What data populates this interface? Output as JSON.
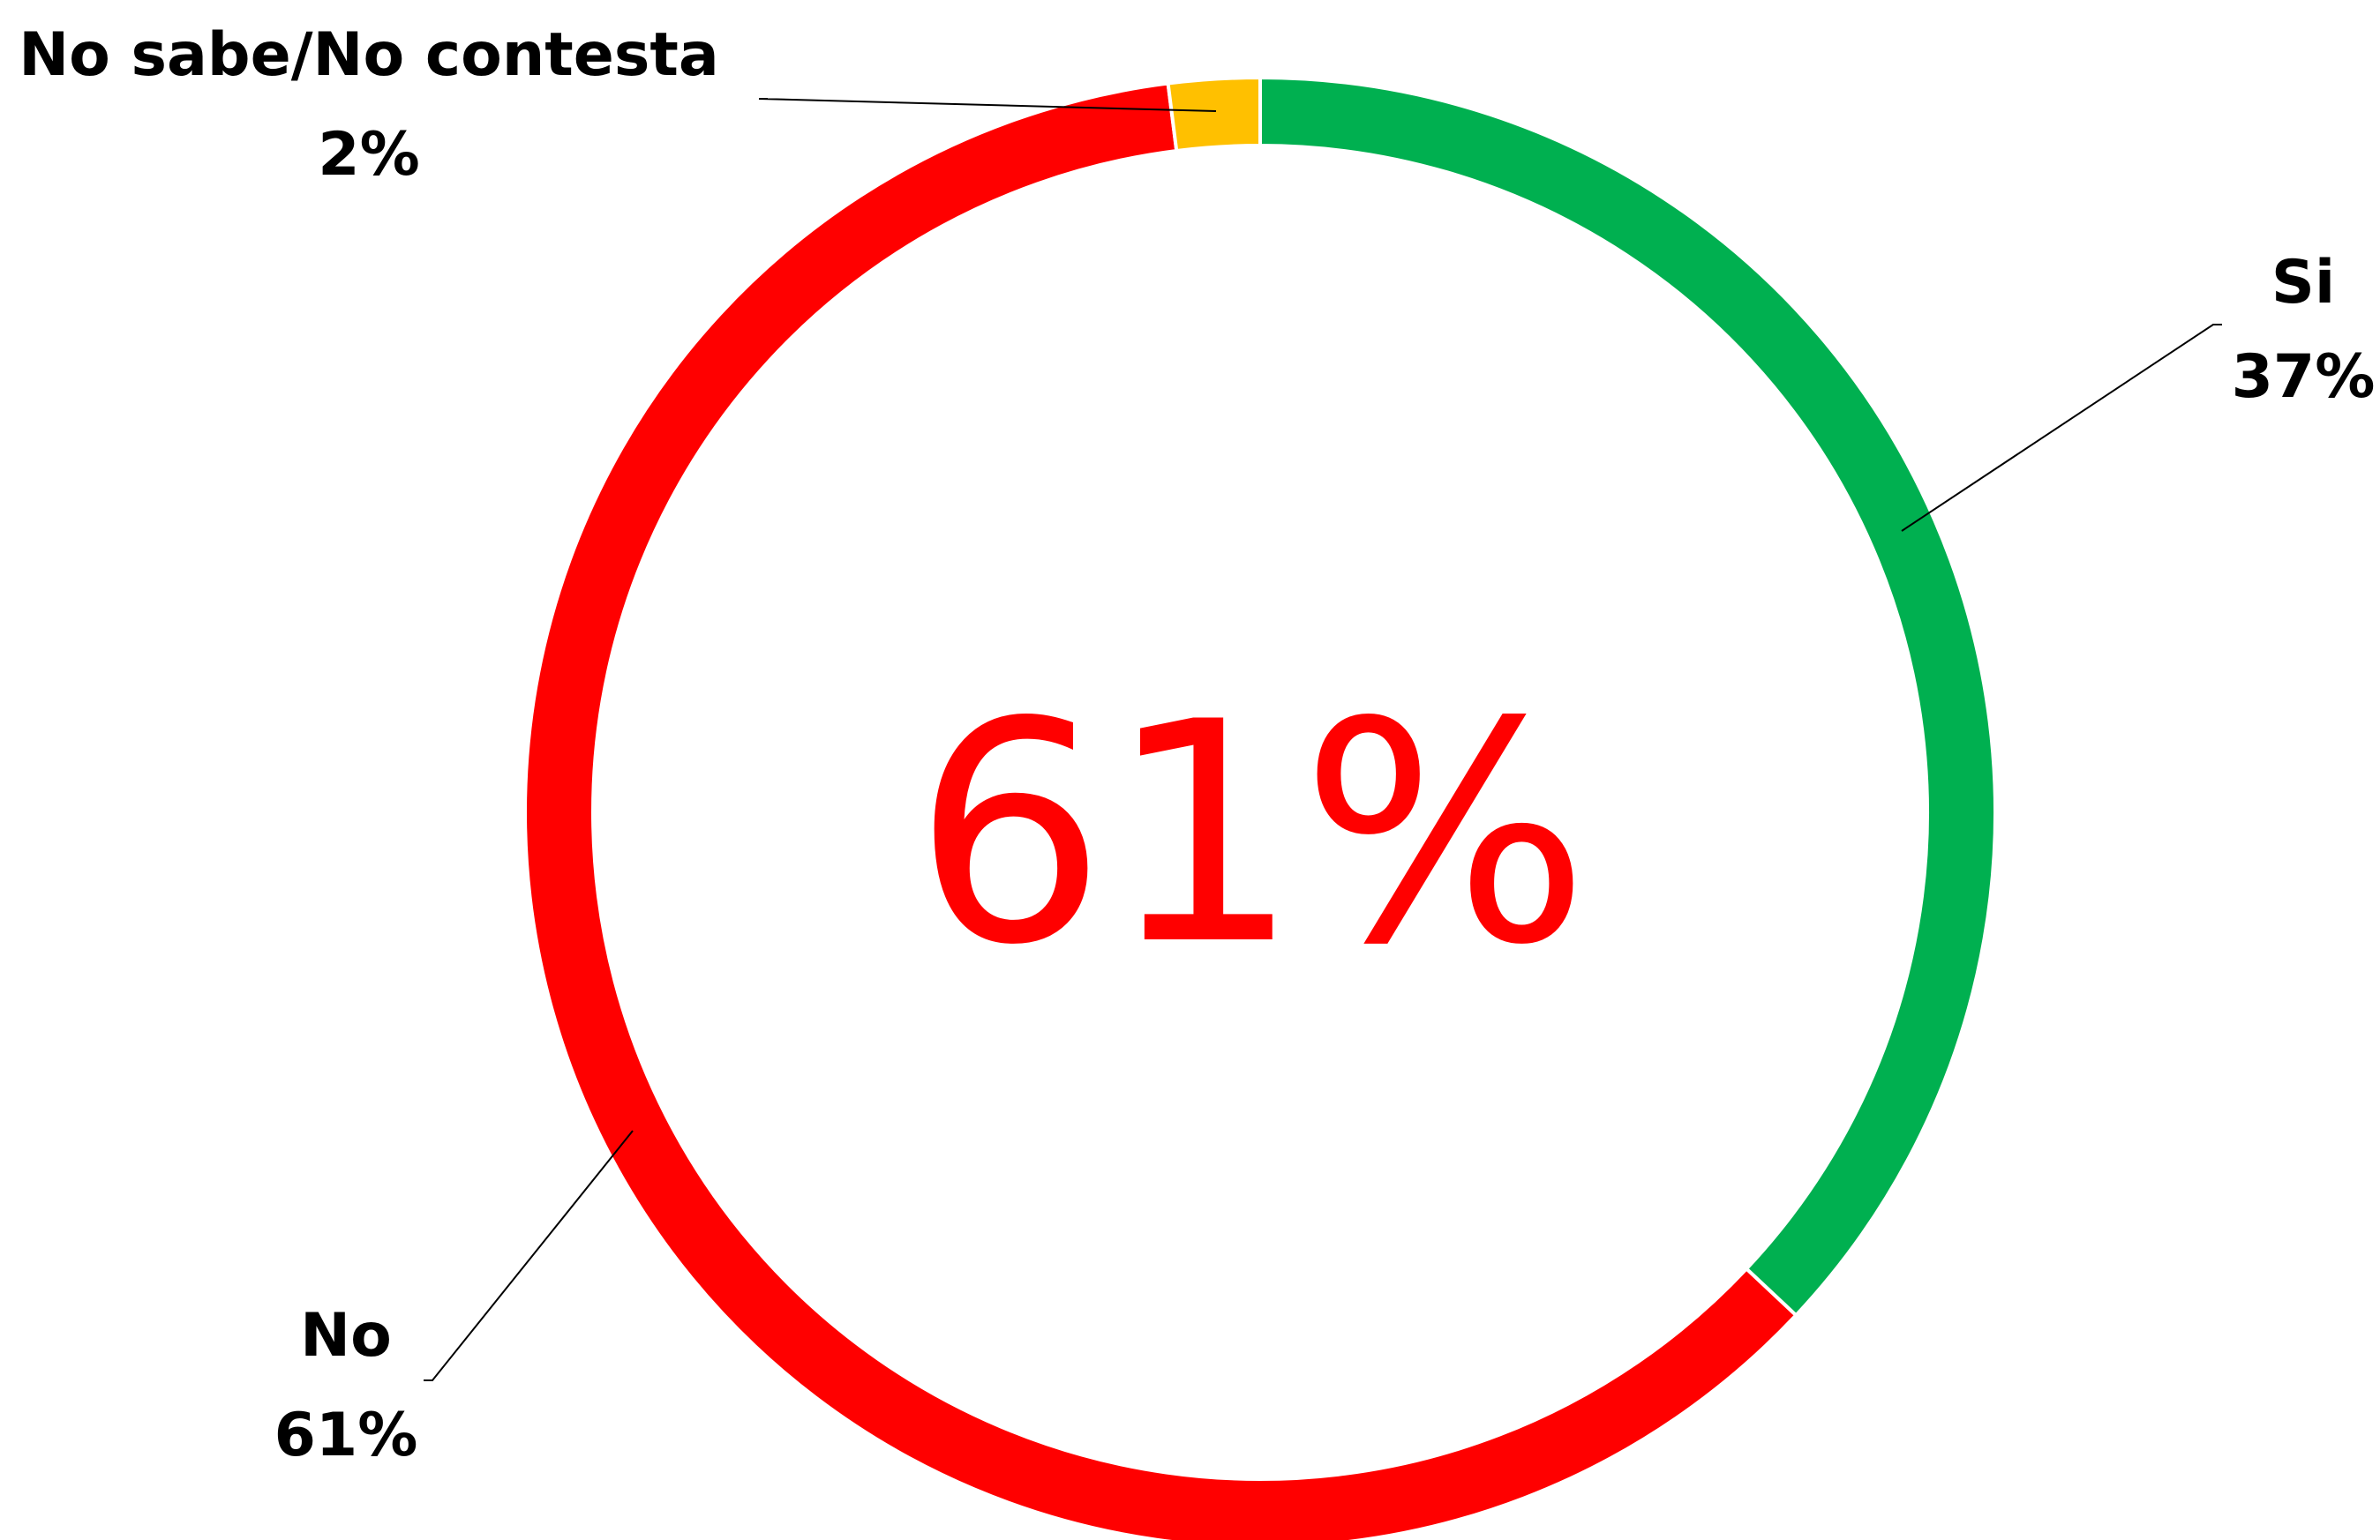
{
  "chart_data": {
    "type": "pie",
    "style": "donut",
    "center_label": "61%",
    "center_color": "#FF0000",
    "slices": [
      {
        "name": "Si",
        "value": 37,
        "label": "37%",
        "color": "#00B050"
      },
      {
        "name": "No",
        "value": 61,
        "label": "61%",
        "color": "#FF0000"
      },
      {
        "name": "No sabe/No contesta",
        "value": 2,
        "label": "2%",
        "color": "#FFC000"
      }
    ],
    "start_angle": "12 o'clock",
    "direction": "clockwise",
    "legend": "none",
    "data_labels": "outside with leader lines"
  }
}
